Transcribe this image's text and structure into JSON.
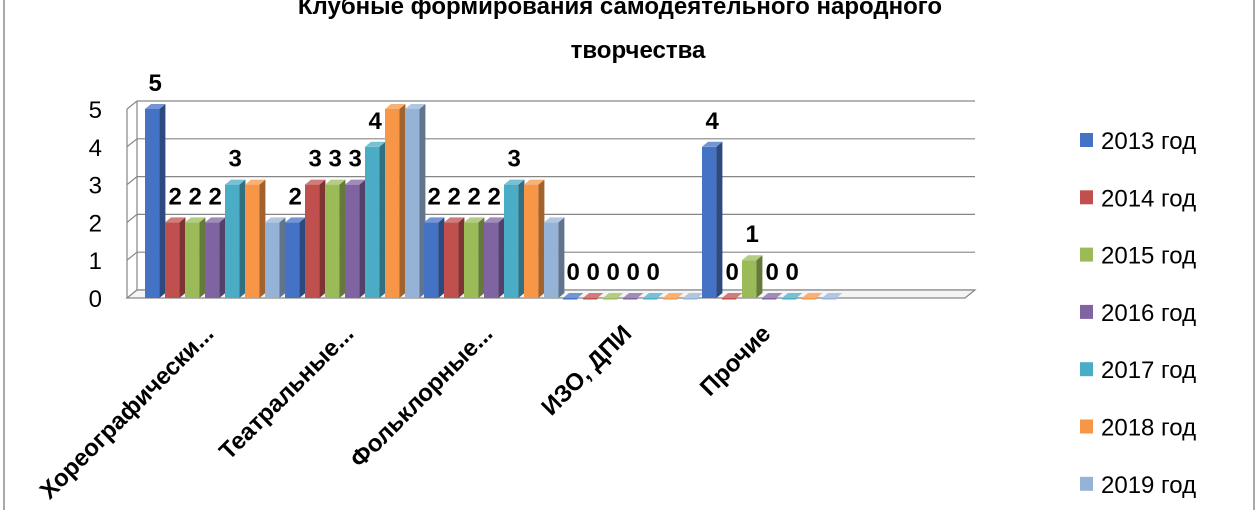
{
  "chart_data": {
    "type": "bar",
    "title_lines": [
      "Клубные формирования самодеятельного народного",
      "творчества"
    ],
    "categories": [
      "Хореографически...",
      "Театральные...",
      "Фольклорные...",
      "ИЗО, ДПИ",
      "Прочие"
    ],
    "category_prefix": [
      "",
      "",
      "",
      "",
      ""
    ],
    "series": [
      {
        "name": "2013 год",
        "values": [
          5,
          2,
          2,
          0,
          4
        ]
      },
      {
        "name": "2014 год",
        "values": [
          2,
          3,
          2,
          0,
          0
        ]
      },
      {
        "name": "2015 год",
        "values": [
          2,
          3,
          2,
          0,
          1
        ]
      },
      {
        "name": "2016 год",
        "values": [
          2,
          3,
          2,
          0,
          0
        ]
      },
      {
        "name": "2017 год",
        "values": [
          3,
          4,
          3,
          0,
          0
        ]
      },
      {
        "name": "2018 год",
        "values": [
          3,
          5,
          3,
          0,
          0
        ]
      },
      {
        "name": "2019 год",
        "values": [
          2,
          5,
          2,
          0,
          0
        ]
      }
    ],
    "data_labels": [
      [
        "5",
        "2",
        "2",
        "2",
        "3",
        "",
        ""
      ],
      [
        "2",
        "3",
        "3",
        "3",
        "4",
        "",
        ""
      ],
      [
        "2",
        "2",
        "2",
        "2",
        "3",
        "",
        ""
      ],
      [
        "0",
        "0",
        "0",
        "0",
        "0",
        "",
        ""
      ],
      [
        "4",
        "0",
        "1",
        "0",
        "0",
        "",
        ""
      ]
    ],
    "y_ticks": [
      "0",
      "1",
      "2",
      "3",
      "4",
      "5"
    ],
    "ylim": [
      0,
      5
    ],
    "grid": true,
    "legend_position": "right",
    "colors": [
      "#4472C4",
      "#C0504D",
      "#9BBB59",
      "#8064A2",
      "#4BACC6",
      "#F79646",
      "#95B3D7"
    ]
  }
}
